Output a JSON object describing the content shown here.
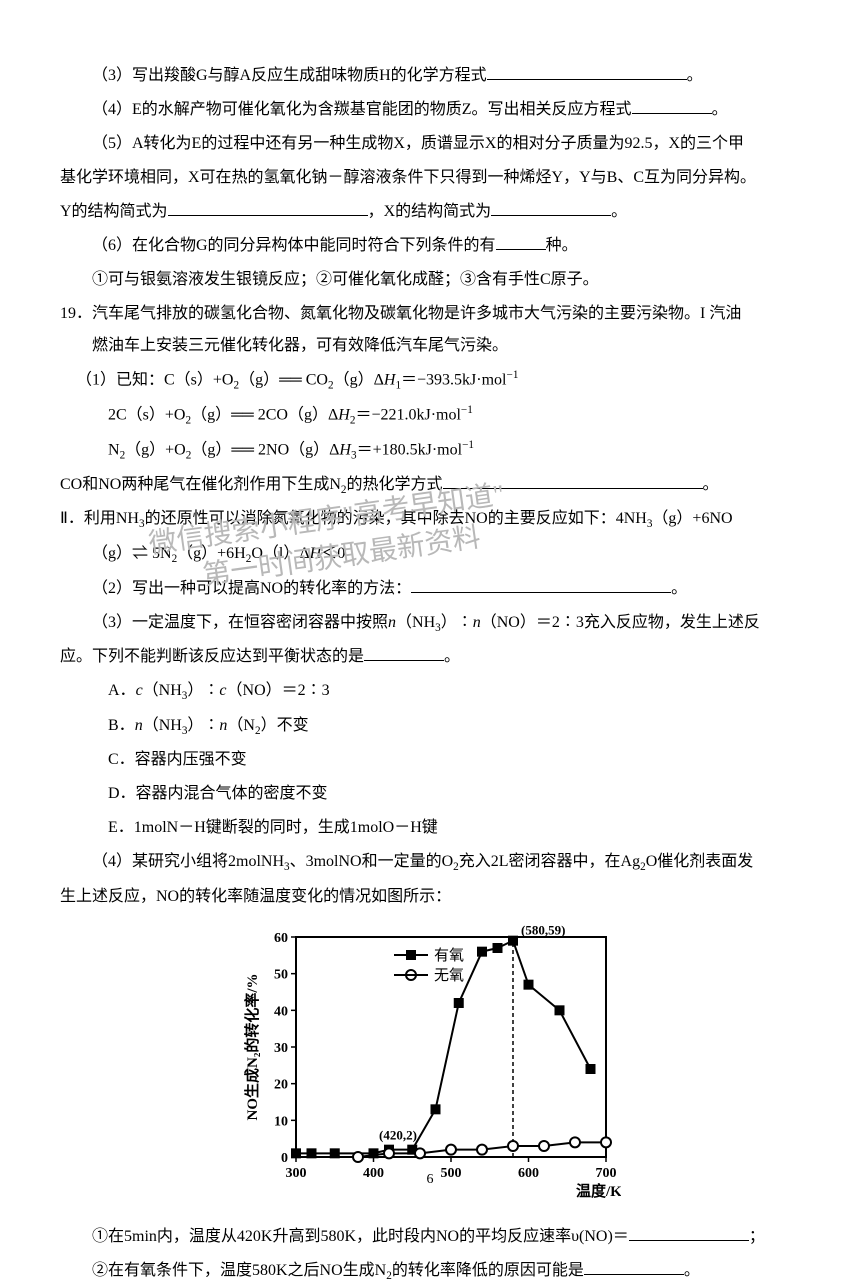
{
  "q3": "（3）写出羧酸G与醇A反应生成甜味物质H的化学方程式",
  "q3_end": "。",
  "q4": "（4）E的水解产物可催化氧化为含羰基官能团的物质Z。写出相关反应方程式",
  "q4_end": "。",
  "q5_1": "（5）A转化为E的过程中还有另一种生成物X，质谱显示X的相对分子质量为92.5，X的三个甲",
  "q5_2": "基化学环境相同，X可在热的氢氧化钠－醇溶液条件下只得到一种烯烃Y，Y与B、C互为同分异构。",
  "q5_3a": "Y的结构简式为",
  "q5_3b": "，X的结构简式为",
  "q5_3c": "。",
  "q6_1a": "（6）在化合物G的同分异构体中能同时符合下列条件的有",
  "q6_1b": "种。",
  "q6_2": "①可与银氨溶液发生银镜反应；②可催化氧化成醛；③含有手性C原子。",
  "q19_num": "19．",
  "q19_1": "汽车尾气排放的碳氢化合物、氮氧化物及碳氧化物是许多城市大气污染的主要污染物。I 汽油",
  "q19_2": "燃油车上安装三元催化转化器，可有效降低汽车尾气污染。",
  "q19_eq1_a": "（1）已知：C（s）+O",
  "q19_eq1_b": "（g）══ CO",
  "q19_eq1_c": "（g）Δ",
  "q19_eq1_d": "＝−393.5kJ·mol",
  "q19_eq2_a": "2C（s）+O",
  "q19_eq2_b": "（g）══ 2CO（g）Δ",
  "q19_eq2_c": "＝−221.0kJ·mol",
  "q19_eq3_a": "N",
  "q19_eq3_b": "（g）+O",
  "q19_eq3_c": "（g）══ 2NO（g）Δ",
  "q19_eq3_d": "＝+180.5kJ·mol",
  "q19_co": "CO和NO两种尾气在催化剂作用下生成N",
  "q19_co_b": "的热化学方式",
  "q19_co_end": "。",
  "q19_II_a": "Ⅱ．利用NH",
  "q19_II_b": "的还原性可以消除氮氧化物的污染，其中除去NO的主要反应如下：4NH",
  "q19_II_c": "（g）+6NO",
  "q19_II2_a": "（g）⇌ 5N",
  "q19_II2_b": "（g）+6H",
  "q19_II2_c": "O（l）Δ",
  "q19_II2_d": "＜0",
  "q19_sub2": "（2）写出一种可以提高NO的转化率的方法：",
  "q19_sub2_end": "。",
  "q19_sub3_a": "（3）一定温度下，在恒容密闭容器中按照",
  "q19_sub3_b": "（NH",
  "q19_sub3_c": "）∶",
  "q19_sub3_d": "（NO）＝2∶3充入反应物，发生上述反",
  "q19_sub3_2": "应。下列不能判断该反应达到平衡状态的是",
  "q19_sub3_2_end": "。",
  "optA_a": "A．",
  "optA_b": "（NH",
  "optA_c": "）∶",
  "optA_d": "（NO）＝2∶3",
  "optB_a": "B．",
  "optB_b": "（NH",
  "optB_c": "）∶",
  "optB_d": "（N",
  "optB_e": "）不变",
  "optC": "C．容器内压强不变",
  "optD": "D．容器内混合气体的密度不变",
  "optE": "E．1molN－H键断裂的同时，生成1molO－H键",
  "q19_sub4_a": "（4）某研究小组将2molNH",
  "q19_sub4_b": "、3molNO和一定量的O",
  "q19_sub4_c": "充入2L密闭容器中，在Ag",
  "q19_sub4_d": "O催化剂表面发",
  "q19_sub4_2": "生上述反应，NO的转化率随温度变化的情况如图所示：",
  "chart": {
    "xlabel": "温度/K",
    "ylabel": "NO生成N₂的转化率/%",
    "xlim": [
      300,
      700
    ],
    "ylim": [
      0,
      60
    ],
    "xtick_step": 100,
    "ytick_step": 10,
    "series1_label": "有氧",
    "series2_label": "无氧",
    "point1_label": "(580,59)",
    "point2_label": "(420,2)",
    "series1_x": [
      300,
      320,
      350,
      400,
      420,
      450,
      480,
      510,
      540,
      560,
      580,
      600,
      640,
      680
    ],
    "series1_y": [
      1,
      1,
      1,
      1,
      2,
      2,
      13,
      42,
      56,
      57,
      59,
      47,
      40,
      24
    ],
    "series2_x": [
      380,
      420,
      460,
      500,
      540,
      580,
      620,
      660,
      700
    ],
    "series2_y": [
      0,
      1,
      1,
      2,
      2,
      3,
      3,
      4,
      4
    ],
    "border_color": "#000000",
    "series1_color": "#000000",
    "series2_color": "#000000",
    "bg_color": "#ffffff"
  },
  "q19_sub4_q1": "①在5min内，温度从420K升高到580K，此时段内NO的平均反应速率υ(NO)＝",
  "q19_sub4_q1_end": "；",
  "q19_sub4_q2": "②在有氧条件下，温度580K之后NO生成N",
  "q19_sub4_q2_b": "的转化率降低的原因可能是",
  "q19_sub4_q2_end": "。",
  "page_num": "6",
  "watermark": "微信搜索小程序\"高考早知道\"\n       第一时间获取最新资料"
}
